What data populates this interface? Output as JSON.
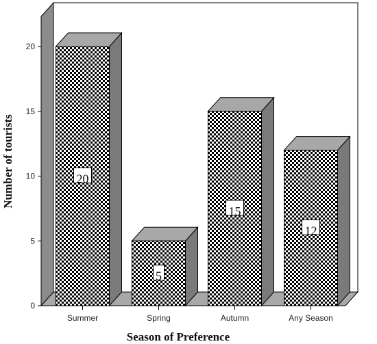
{
  "chart_data": {
    "type": "bar",
    "style": "3d",
    "categories": [
      "Summer",
      "Spring",
      "Autumn",
      "Any Season"
    ],
    "values": [
      20,
      5,
      15,
      12
    ],
    "data_labels": [
      "20",
      "5",
      "15",
      "12"
    ],
    "title": "",
    "xlabel": "Season of Preference",
    "ylabel": "Number of tourists",
    "ylim": [
      0,
      20
    ],
    "yticks": [
      "0",
      "5",
      "10",
      "15",
      "20"
    ],
    "grid": false,
    "legend": "none",
    "bar_pattern": "checkerboard",
    "colors": {
      "bar_front": "#000000",
      "bar_pattern_light": "#ffffff",
      "bar_top": "#a8a8a8",
      "bar_side": "#7a7a7a",
      "wall": "#ffffff",
      "wall_side": "#8c8c8c",
      "floor": "#a8a8a8",
      "line": "#000000"
    }
  }
}
